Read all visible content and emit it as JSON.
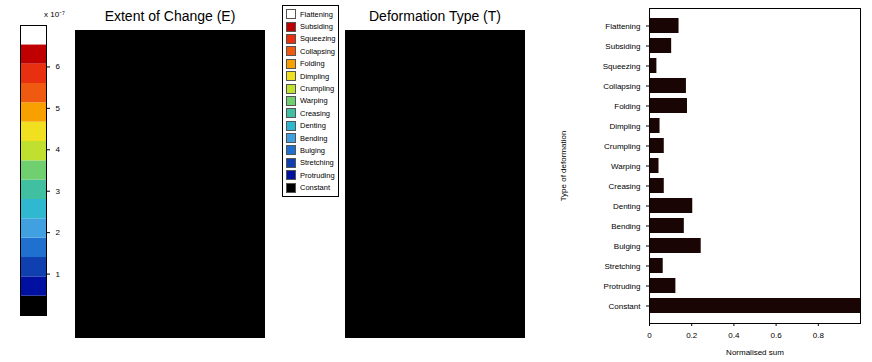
{
  "chart_data": [
    {
      "type": "heatmap",
      "title": "Extent of Change (E)",
      "colorbar": {
        "range": [
          0,
          7e-07
        ],
        "ticks": [
          {
            "value": 1e-07,
            "label": "1"
          },
          {
            "value": 2e-07,
            "label": "2"
          },
          {
            "value": 3e-07,
            "label": "3"
          },
          {
            "value": 4e-07,
            "label": "4"
          },
          {
            "value": 5e-07,
            "label": "5"
          },
          {
            "value": 6e-07,
            "label": "6"
          }
        ],
        "exponent_label": "x 10⁻⁷",
        "colors": [
          "#000000",
          "#0010a0",
          "#1040b0",
          "#2070d0",
          "#40a0e0",
          "#30b8d0",
          "#40c0a0",
          "#70d070",
          "#c0e030",
          "#f0e020",
          "#f8a000",
          "#f05a10",
          "#e83010",
          "#c00000",
          "#ffffff"
        ]
      }
    },
    {
      "type": "heatmap",
      "title": "Deformation Type (T)",
      "categories": [
        "Flattening",
        "Subsiding",
        "Squeezing",
        "Collapsing",
        "Folding",
        "Dimpling",
        "Crumpling",
        "Warping",
        "Creasing",
        "Denting",
        "Bending",
        "Bulging",
        "Stretching",
        "Protruding",
        "Constant"
      ],
      "colors": [
        "#ffffff",
        "#c00000",
        "#e83010",
        "#f05a10",
        "#f8a000",
        "#f0e020",
        "#c0e030",
        "#70d070",
        "#40c0a0",
        "#30b8d0",
        "#40a0e0",
        "#2070d0",
        "#1040b0",
        "#0010a0",
        "#000000"
      ]
    },
    {
      "type": "bar",
      "orientation": "horizontal",
      "x_label": "Normalised sum",
      "y_label": "Type of deformation",
      "categories": [
        "Flattening",
        "Subsiding",
        "Squeezing",
        "Collapsing",
        "Folding",
        "Dimpling",
        "Crumpling",
        "Warping",
        "Creasing",
        "Denting",
        "Bending",
        "Bulging",
        "Stretching",
        "Protruding",
        "Constant"
      ],
      "values": [
        0.14,
        0.105,
        0.035,
        0.175,
        0.18,
        0.05,
        0.07,
        0.045,
        0.07,
        0.205,
        0.165,
        0.245,
        0.065,
        0.125,
        1.0
      ],
      "color": "#1a0505",
      "xlim": [
        0,
        1
      ],
      "xticks": [
        0,
        0.2,
        0.4,
        0.6,
        0.8
      ]
    }
  ]
}
